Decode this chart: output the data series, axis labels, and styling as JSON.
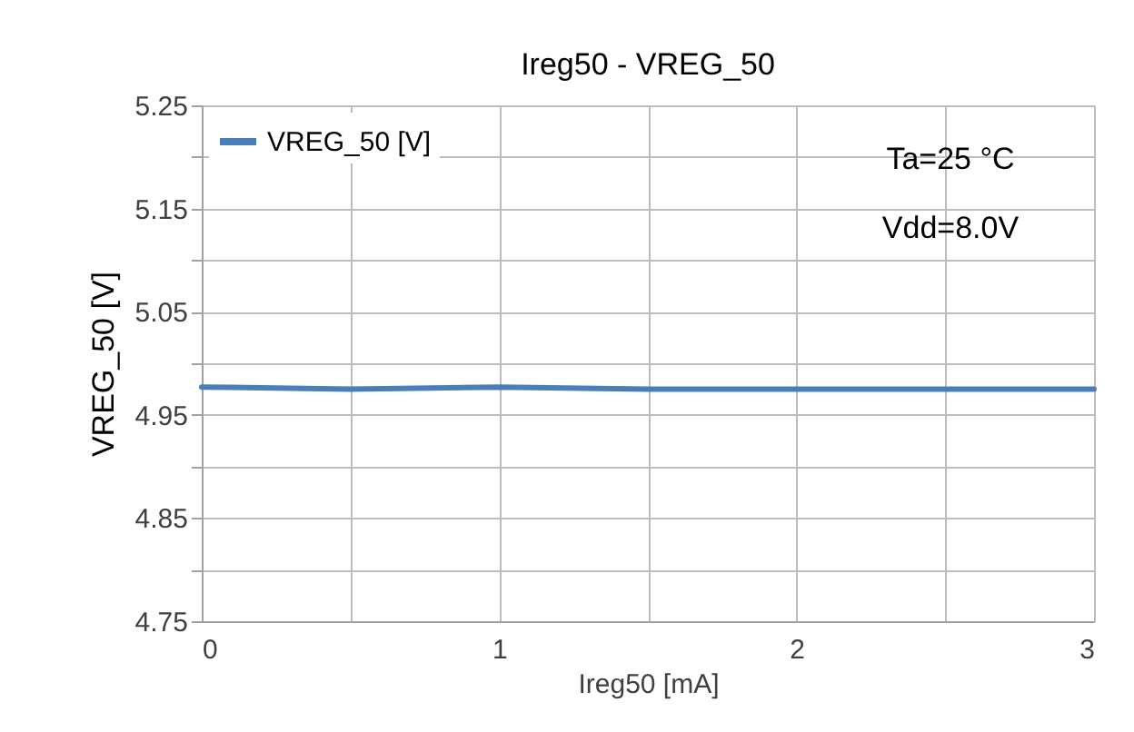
{
  "chart_data": {
    "type": "line",
    "title": "Ireg50 - VREG_50",
    "xlabel": "Ireg50 [mA]",
    "ylabel": "VREG_50 [V]",
    "x": [
      0,
      0.5,
      1,
      1.5,
      2,
      2.5,
      3
    ],
    "series": [
      {
        "name": "VREG_50 [V]",
        "color": "#4a7ebb",
        "values": [
          4.977,
          4.975,
          4.977,
          4.975,
          4.975,
          4.975,
          4.975
        ]
      }
    ],
    "xlim": [
      0,
      3
    ],
    "xticks": [
      0,
      {
        "value": 0.5,
        "label": null
      },
      1,
      {
        "value": 1.5,
        "label": null
      },
      2,
      {
        "value": 2.5,
        "label": null
      },
      3
    ],
    "ylim": [
      4.75,
      5.25
    ],
    "yticks": [
      4.75,
      {
        "value": 4.8,
        "label": null
      },
      4.85,
      {
        "value": 4.9,
        "label": null
      },
      4.95,
      {
        "value": 5.0,
        "label": null
      },
      5.05,
      {
        "value": 5.1,
        "label": null
      },
      5.15,
      {
        "value": 5.2,
        "label": null
      },
      5.25
    ],
    "grid": true,
    "legend": "top left",
    "marker": "none",
    "line_style": "solid",
    "annotations": [
      "Ta=25 °C",
      "Vdd=8.0V"
    ]
  }
}
